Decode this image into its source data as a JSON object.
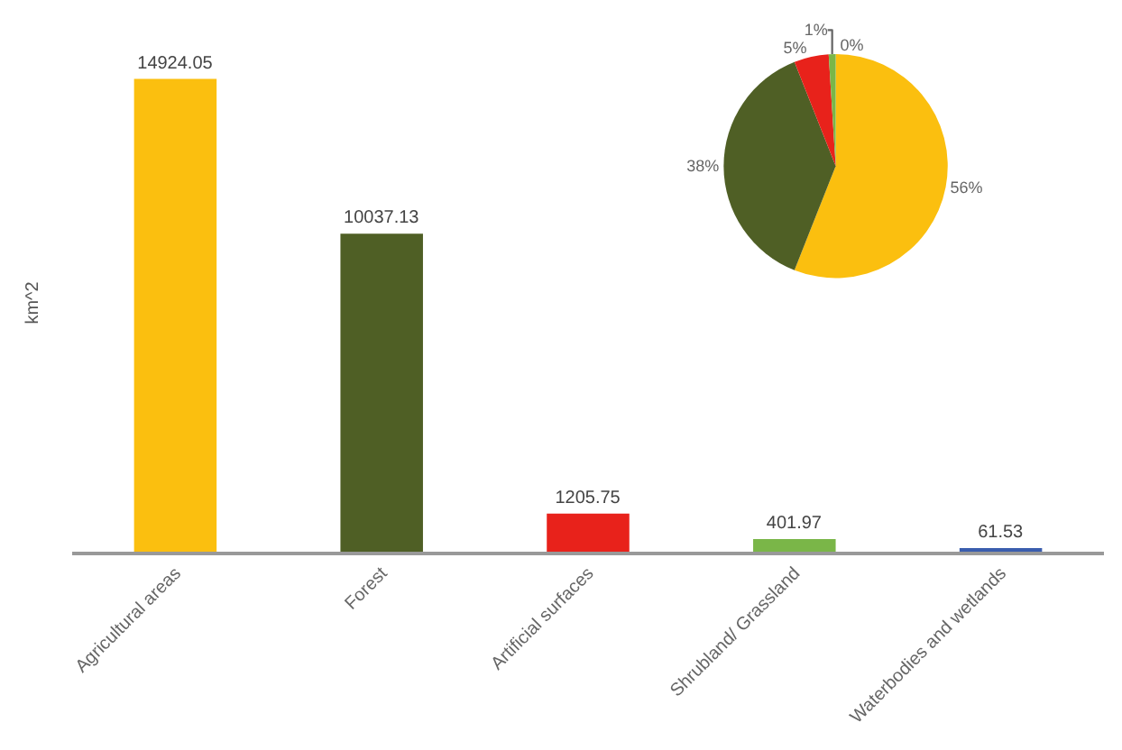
{
  "chart_data": [
    {
      "type": "bar",
      "ylabel": "km^2",
      "categories": [
        "Agricultural areas",
        "Forest",
        "Artificial surfaces",
        "Shrubland/ Grassland",
        "Waterbodies and wetlands"
      ],
      "values": [
        14924.05,
        10037.13,
        1205.75,
        401.97,
        61.53
      ],
      "colors": [
        "#fbbf0f",
        "#4f5f25",
        "#e8221b",
        "#7ab648",
        "#3a5dae"
      ],
      "data_labels": true,
      "tick_labels": "x"
    },
    {
      "type": "pie",
      "categories": [
        null,
        null,
        null,
        null,
        null
      ],
      "values": [
        56,
        38,
        5,
        1,
        0
      ],
      "value_labels": [
        "56%",
        "38%",
        "5%",
        "1%",
        "0%"
      ],
      "colors": [
        "#fbbf0f",
        "#4f5f25",
        "#e8221b",
        "#7ab648",
        "#3a5dae"
      ]
    }
  ]
}
